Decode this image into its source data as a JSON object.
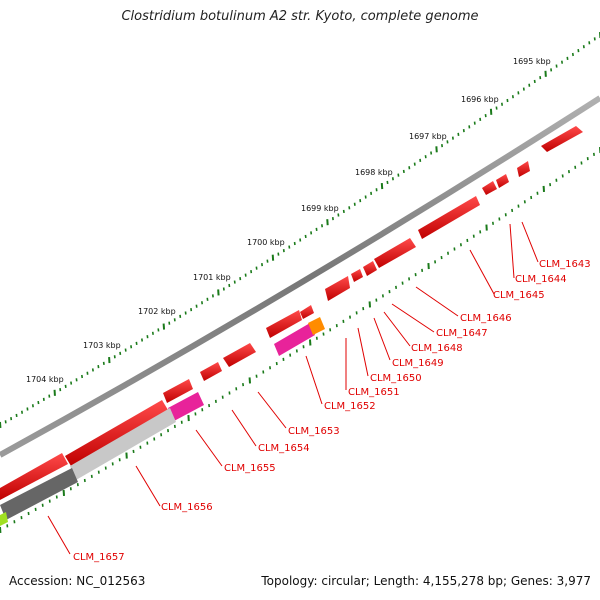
{
  "title": "Clostridium botulinum A2 str. Kyoto, complete genome",
  "accession": "Accession: NC_012563",
  "summary": "Topology: circular; Length: 4,155,278 bp; Genes: 3,977",
  "colors": {
    "cds": "#e00000",
    "tick": "#1a7a1a",
    "backbone": "#8c8c8c",
    "label": "#e00000"
  },
  "scale_labels": [
    "1695 kbp",
    "1696 kbp",
    "1697 kbp",
    "1698 kbp",
    "1699 kbp",
    "1700 kbp",
    "1701 kbp",
    "1702 kbp",
    "1703 kbp",
    "1704 kbp"
  ],
  "gene_labels": [
    "CLM_1643",
    "CLM_1644",
    "CLM_1645",
    "CLM_1646",
    "CLM_1647",
    "CLM_1648",
    "CLM_1649",
    "CLM_1650",
    "CLM_1651",
    "CLM_1652",
    "CLM_1653",
    "CLM_1654",
    "CLM_1655",
    "CLM_1656",
    "CLM_1657"
  ]
}
